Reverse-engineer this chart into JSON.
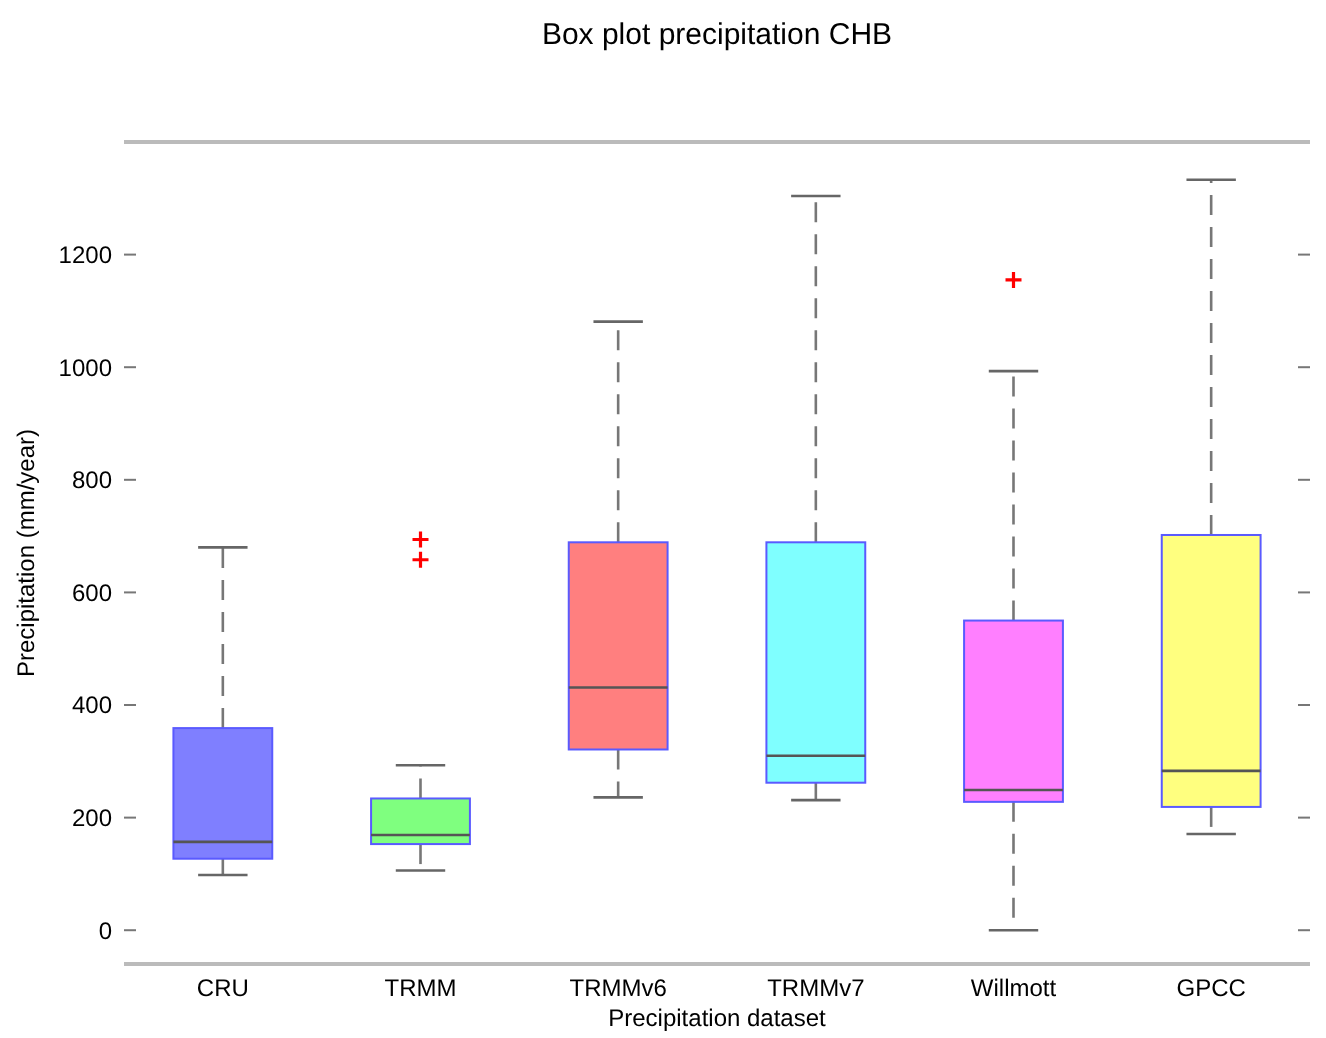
{
  "chart_data": {
    "type": "box",
    "title": "Box plot precipitation CHB",
    "xlabel": "Precipitation dataset",
    "ylabel": "Precipitation (mm/year)",
    "categories": [
      "CRU",
      "TRMM",
      "TRMMv6",
      "TRMMv7",
      "Willmott",
      "GPCC"
    ],
    "colors": [
      "#7f7fff",
      "#7fff7f",
      "#ff7f7f",
      "#7fffff",
      "#ff7fff",
      "#ffff7f"
    ],
    "boxes": [
      {
        "low": 98,
        "q1": 127,
        "median": 157,
        "q3": 359,
        "high": 680
      },
      {
        "low": 106,
        "q1": 153,
        "median": 169,
        "q3": 234,
        "high": 293,
        "outliers": [
          658,
          694
        ]
      },
      {
        "low": 236,
        "q1": 321,
        "median": 431,
        "q3": 689,
        "high": 1081
      },
      {
        "low": 231,
        "q1": 262,
        "median": 310,
        "q3": 689,
        "high": 1304
      },
      {
        "low": 0,
        "q1": 228,
        "median": 249,
        "q3": 550,
        "high": 993,
        "outliers": [
          1155
        ]
      },
      {
        "low": 171,
        "q1": 219,
        "median": 283,
        "q3": 702,
        "high": 1333
      }
    ],
    "ylim": [
      -60,
      1400
    ],
    "yticks": [
      0,
      200,
      400,
      600,
      800,
      1000,
      1200
    ],
    "grid": false
  }
}
